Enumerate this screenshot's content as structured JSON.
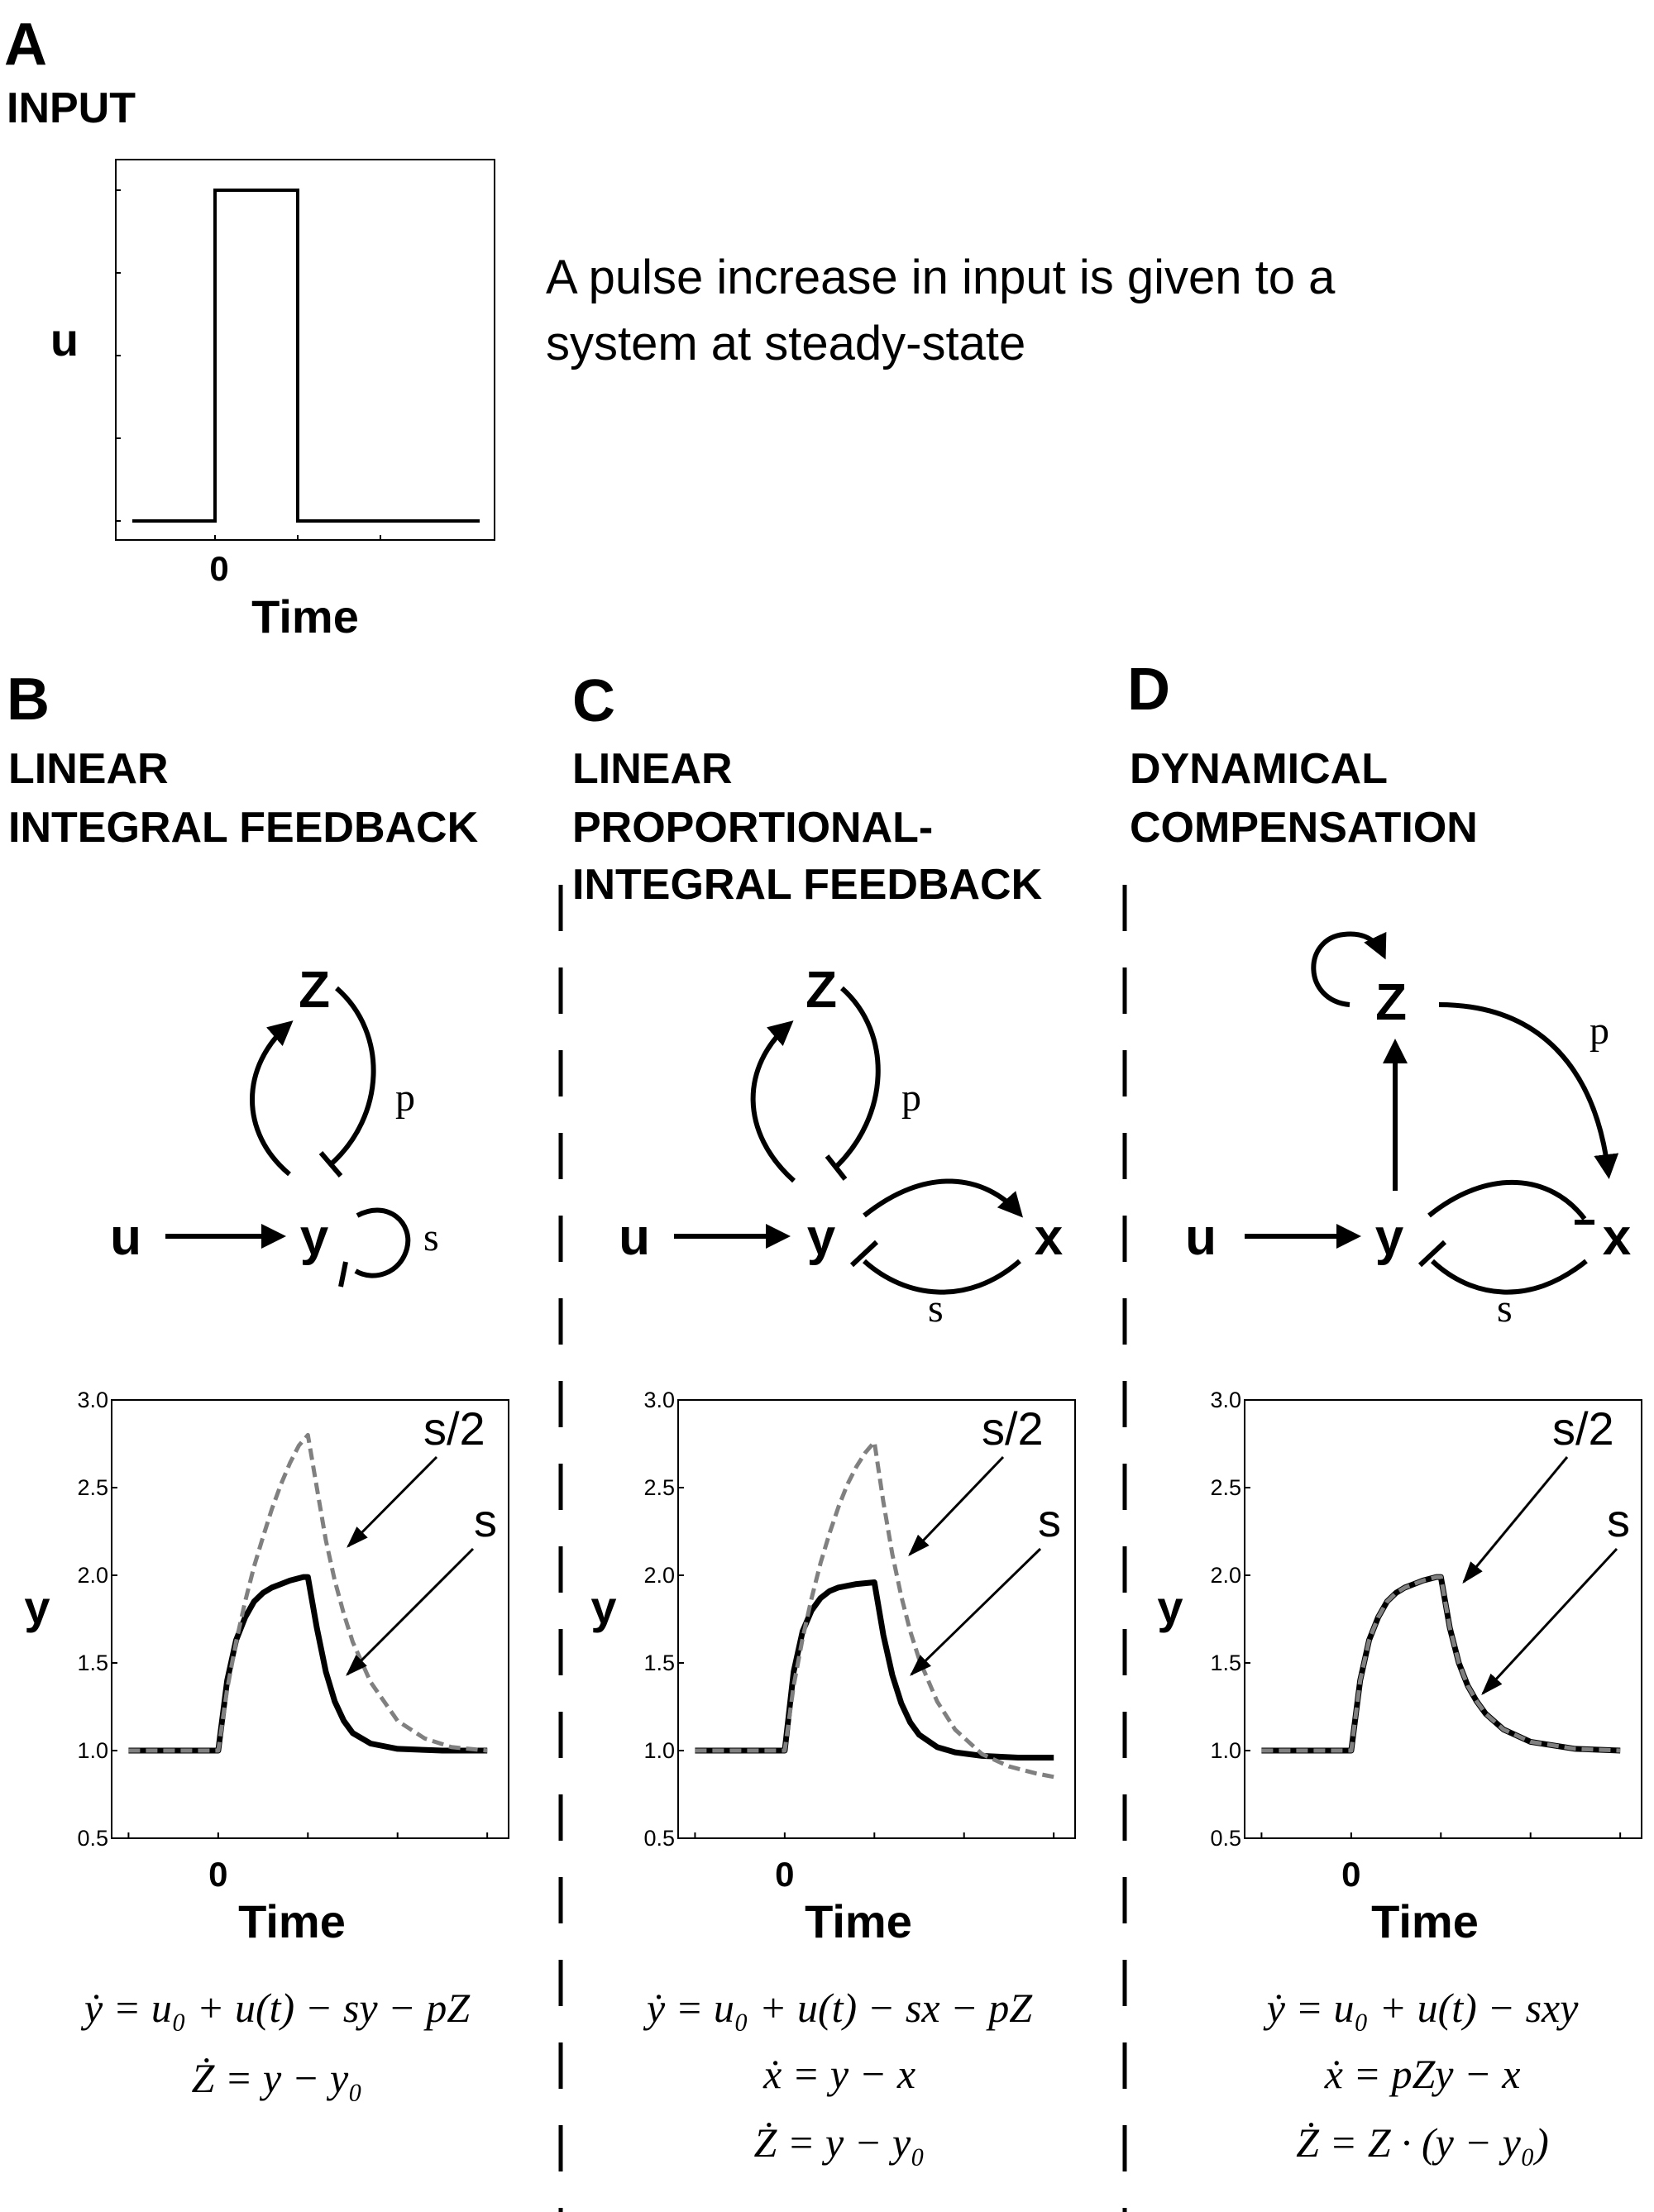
{
  "panel_a": {
    "label": "A",
    "title": "INPUT",
    "y_label": "u",
    "x_label": "Time",
    "x_zero": "0",
    "description_line1": "A pulse increase in input is given to a",
    "description_line2": "system at steady-state"
  },
  "panel_b": {
    "label": "B",
    "title_line1": "LINEAR",
    "title_line2": "INTEGRAL FEEDBACK",
    "nodes": {
      "z": "Z",
      "u": "u",
      "y": "y"
    },
    "edges": {
      "p": "p",
      "s": "s"
    },
    "equations": [
      "ẏ = u₀ + u(t) − sy − pZ",
      "Ż = y − y₀"
    ]
  },
  "panel_c": {
    "label": "C",
    "title_line1": "LINEAR",
    "title_line2": "PROPORTIONAL-",
    "title_line3": "INTEGRAL FEEDBACK",
    "nodes": {
      "z": "Z",
      "u": "u",
      "y": "y",
      "x": "x"
    },
    "edges": {
      "p": "p",
      "s": "s"
    },
    "equations": [
      "ẏ = u₀ + u(t) − sx − pZ",
      "ẋ = y − x",
      "Ż = y − y₀"
    ]
  },
  "panel_d": {
    "label": "D",
    "title_line1": "DYNAMICAL",
    "title_line2": "COMPENSATION",
    "nodes": {
      "z": "Z",
      "u": "u",
      "y": "y",
      "x": "x"
    },
    "edges": {
      "p": "p",
      "s": "s"
    },
    "equations": [
      "ẏ = u₀ + u(t) − sxy",
      "ẋ = pZy − x",
      "Ż = Z · (y − y₀)"
    ]
  },
  "chart_data": [
    {
      "panel": "A",
      "type": "line",
      "xlabel": "Time",
      "ylabel": "u",
      "x_ticks": [
        "0"
      ],
      "xlim": [
        -1,
        3.2
      ],
      "ylim": [
        0,
        1.05
      ],
      "series": [
        {
          "points": [
            [
              -1,
              0
            ],
            [
              0,
              0
            ],
            [
              0,
              1
            ],
            [
              1,
              1
            ],
            [
              1,
              0
            ],
            [
              3.2,
              0
            ]
          ]
        }
      ]
    },
    {
      "panel": "B",
      "type": "line",
      "xlabel": "Time",
      "ylabel": "y",
      "x_ticks": [
        "0"
      ],
      "y_ticks": [
        "0.5",
        "1.0",
        "1.5",
        "2.0",
        "2.5",
        "3.0"
      ],
      "xlim": [
        -1.05,
        3.1
      ],
      "ylim": [
        0.5,
        3.0
      ],
      "series": [
        {
          "name": "s",
          "style": "solid",
          "color": "#000000",
          "points": [
            [
              -1,
              1.0
            ],
            [
              0,
              1.0
            ],
            [
              0.1,
              1.4
            ],
            [
              0.2,
              1.63
            ],
            [
              0.3,
              1.76
            ],
            [
              0.4,
              1.85
            ],
            [
              0.5,
              1.9
            ],
            [
              0.6,
              1.93
            ],
            [
              0.7,
              1.95
            ],
            [
              0.8,
              1.97
            ],
            [
              0.95,
              1.99
            ],
            [
              1.0,
              1.99
            ],
            [
              1.1,
              1.7
            ],
            [
              1.2,
              1.45
            ],
            [
              1.3,
              1.28
            ],
            [
              1.4,
              1.17
            ],
            [
              1.5,
              1.1
            ],
            [
              1.7,
              1.04
            ],
            [
              2.0,
              1.01
            ],
            [
              2.5,
              1.0
            ],
            [
              3.0,
              1.0
            ]
          ]
        },
        {
          "name": "s/2",
          "style": "dashed",
          "color": "#808080",
          "points": [
            [
              -1,
              1.0
            ],
            [
              0,
              1.0
            ],
            [
              0.1,
              1.35
            ],
            [
              0.2,
              1.62
            ],
            [
              0.3,
              1.85
            ],
            [
              0.4,
              2.05
            ],
            [
              0.5,
              2.22
            ],
            [
              0.6,
              2.38
            ],
            [
              0.7,
              2.52
            ],
            [
              0.8,
              2.64
            ],
            [
              0.9,
              2.74
            ],
            [
              1.0,
              2.8
            ],
            [
              1.1,
              2.5
            ],
            [
              1.2,
              2.2
            ],
            [
              1.3,
              1.97
            ],
            [
              1.4,
              1.78
            ],
            [
              1.5,
              1.62
            ],
            [
              1.7,
              1.39
            ],
            [
              2.0,
              1.17
            ],
            [
              2.3,
              1.07
            ],
            [
              2.6,
              1.02
            ],
            [
              3.0,
              1.0
            ]
          ]
        }
      ],
      "annotations": [
        "s/2",
        "s"
      ]
    },
    {
      "panel": "C",
      "type": "line",
      "xlabel": "Time",
      "ylabel": "y",
      "x_ticks": [
        "0"
      ],
      "y_ticks": [
        "0.5",
        "1.0",
        "1.5",
        "2.0",
        "2.5",
        "3.0"
      ],
      "xlim": [
        -1.05,
        3.1
      ],
      "ylim": [
        0.5,
        3.0
      ],
      "series": [
        {
          "name": "s",
          "style": "solid",
          "color": "#000000",
          "points": [
            [
              -1,
              1.0
            ],
            [
              0,
              1.0
            ],
            [
              0.1,
              1.45
            ],
            [
              0.2,
              1.68
            ],
            [
              0.3,
              1.8
            ],
            [
              0.4,
              1.87
            ],
            [
              0.5,
              1.91
            ],
            [
              0.6,
              1.93
            ],
            [
              0.7,
              1.94
            ],
            [
              0.8,
              1.95
            ],
            [
              1.0,
              1.96
            ],
            [
              1.1,
              1.66
            ],
            [
              1.2,
              1.43
            ],
            [
              1.3,
              1.27
            ],
            [
              1.4,
              1.16
            ],
            [
              1.5,
              1.09
            ],
            [
              1.7,
              1.02
            ],
            [
              1.9,
              0.99
            ],
            [
              2.2,
              0.97
            ],
            [
              2.6,
              0.96
            ],
            [
              3.0,
              0.96
            ]
          ]
        },
        {
          "name": "s/2",
          "style": "dashed",
          "color": "#808080",
          "points": [
            [
              -1,
              1.0
            ],
            [
              0,
              1.0
            ],
            [
              0.1,
              1.37
            ],
            [
              0.2,
              1.64
            ],
            [
              0.3,
              1.87
            ],
            [
              0.4,
              2.07
            ],
            [
              0.5,
              2.24
            ],
            [
              0.6,
              2.39
            ],
            [
              0.7,
              2.52
            ],
            [
              0.8,
              2.62
            ],
            [
              0.9,
              2.7
            ],
            [
              1.0,
              2.76
            ],
            [
              1.1,
              2.42
            ],
            [
              1.2,
              2.12
            ],
            [
              1.3,
              1.88
            ],
            [
              1.4,
              1.68
            ],
            [
              1.5,
              1.52
            ],
            [
              1.7,
              1.28
            ],
            [
              1.9,
              1.12
            ],
            [
              2.2,
              0.98
            ],
            [
              2.5,
              0.91
            ],
            [
              2.8,
              0.87
            ],
            [
              3.0,
              0.85
            ]
          ]
        }
      ],
      "annotations": [
        "s/2",
        "s"
      ]
    },
    {
      "panel": "D",
      "type": "line",
      "xlabel": "Time",
      "ylabel": "y",
      "x_ticks": [
        "0"
      ],
      "y_ticks": [
        "0.5",
        "1.0",
        "1.5",
        "2.0",
        "2.5",
        "3.0"
      ],
      "xlim": [
        -1.05,
        3.1
      ],
      "ylim": [
        0.5,
        3.0
      ],
      "series": [
        {
          "name": "s",
          "style": "solid",
          "color": "#000000",
          "points": [
            [
              -1,
              1.0
            ],
            [
              0,
              1.0
            ],
            [
              0.1,
              1.4
            ],
            [
              0.2,
              1.63
            ],
            [
              0.3,
              1.76
            ],
            [
              0.4,
              1.85
            ],
            [
              0.5,
              1.9
            ],
            [
              0.6,
              1.93
            ],
            [
              0.7,
              1.95
            ],
            [
              0.8,
              1.97
            ],
            [
              0.95,
              1.99
            ],
            [
              1.0,
              1.99
            ],
            [
              1.1,
              1.7
            ],
            [
              1.2,
              1.5
            ],
            [
              1.3,
              1.37
            ],
            [
              1.4,
              1.28
            ],
            [
              1.5,
              1.21
            ],
            [
              1.7,
              1.12
            ],
            [
              2.0,
              1.05
            ],
            [
              2.5,
              1.01
            ],
            [
              3.0,
              1.0
            ]
          ]
        },
        {
          "name": "s/2",
          "style": "dashed",
          "color": "#808080",
          "points": [
            [
              -1,
              1.0
            ],
            [
              0,
              1.0
            ],
            [
              0.1,
              1.4
            ],
            [
              0.2,
              1.63
            ],
            [
              0.3,
              1.76
            ],
            [
              0.4,
              1.85
            ],
            [
              0.5,
              1.9
            ],
            [
              0.6,
              1.93
            ],
            [
              0.7,
              1.95
            ],
            [
              0.8,
              1.97
            ],
            [
              0.95,
              1.99
            ],
            [
              1.0,
              1.99
            ],
            [
              1.1,
              1.7
            ],
            [
              1.2,
              1.5
            ],
            [
              1.3,
              1.37
            ],
            [
              1.4,
              1.28
            ],
            [
              1.5,
              1.21
            ],
            [
              1.7,
              1.12
            ],
            [
              2.0,
              1.05
            ],
            [
              2.5,
              1.01
            ],
            [
              3.0,
              1.0
            ]
          ]
        }
      ],
      "annotations": [
        "s/2",
        "s"
      ]
    }
  ]
}
